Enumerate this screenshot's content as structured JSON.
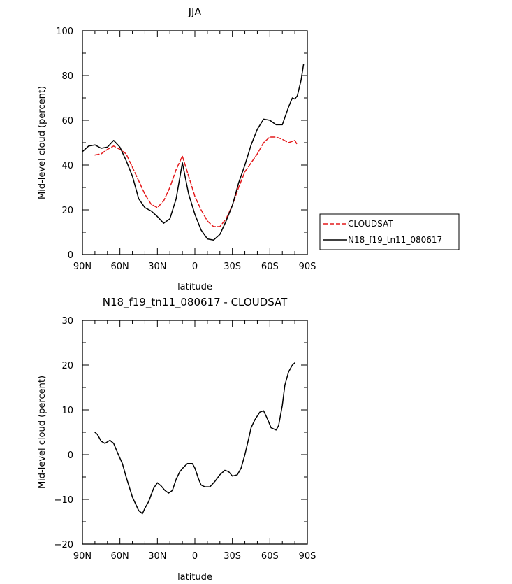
{
  "chart_data": [
    {
      "type": "line",
      "title": "JJA",
      "xlabel": "latitude",
      "ylabel": "Mid-level cloud (percent)",
      "xlim": [
        90,
        -90
      ],
      "ylim": [
        0,
        100
      ],
      "x_ticks": [
        90,
        60,
        30,
        0,
        -30,
        -60,
        -90
      ],
      "x_tick_labels": [
        "90N",
        "60N",
        "30N",
        "0",
        "30S",
        "60S",
        "90S"
      ],
      "y_ticks": [
        0,
        20,
        40,
        60,
        80,
        100
      ],
      "y_tick_labels": [
        "0",
        "20",
        "40",
        "60",
        "80",
        "100"
      ],
      "legend": "right",
      "series": [
        {
          "name": "CLOUDSAT",
          "color": "#e41a1c",
          "style": "dashed",
          "points": [
            [
              80,
              44.5
            ],
            [
              75,
              45
            ],
            [
              70,
              47
            ],
            [
              65,
              48.5
            ],
            [
              60,
              47
            ],
            [
              55,
              45
            ],
            [
              50,
              39
            ],
            [
              45,
              33
            ],
            [
              40,
              27
            ],
            [
              35,
              22.5
            ],
            [
              30,
              21
            ],
            [
              25,
              24
            ],
            [
              20,
              30
            ],
            [
              15,
              38
            ],
            [
              10,
              44
            ],
            [
              5,
              35
            ],
            [
              0,
              26
            ],
            [
              -5,
              20
            ],
            [
              -10,
              15
            ],
            [
              -15,
              12.5
            ],
            [
              -20,
              12.5
            ],
            [
              -25,
              16
            ],
            [
              -30,
              22
            ],
            [
              -35,
              30
            ],
            [
              -40,
              37
            ],
            [
              -45,
              41
            ],
            [
              -50,
              45
            ],
            [
              -55,
              50
            ],
            [
              -60,
              52.5
            ],
            [
              -65,
              52.5
            ],
            [
              -70,
              51.5
            ],
            [
              -75,
              50
            ],
            [
              -80,
              51
            ],
            [
              -82,
              49
            ]
          ]
        },
        {
          "name": "N18_f19_tn11_080617",
          "color": "#000000",
          "style": "solid",
          "points": [
            [
              90,
              46
            ],
            [
              85,
              48.5
            ],
            [
              80,
              49
            ],
            [
              75,
              47.5
            ],
            [
              70,
              48
            ],
            [
              65,
              51
            ],
            [
              60,
              48
            ],
            [
              55,
              42
            ],
            [
              50,
              35
            ],
            [
              45,
              25
            ],
            [
              40,
              21
            ],
            [
              35,
              19.5
            ],
            [
              30,
              17
            ],
            [
              25,
              14
            ],
            [
              20,
              16
            ],
            [
              15,
              25
            ],
            [
              10,
              41
            ],
            [
              5,
              27
            ],
            [
              0,
              18
            ],
            [
              -5,
              11
            ],
            [
              -10,
              7
            ],
            [
              -15,
              6.5
            ],
            [
              -20,
              9
            ],
            [
              -25,
              15
            ],
            [
              -30,
              22
            ],
            [
              -35,
              32
            ],
            [
              -40,
              40
            ],
            [
              -45,
              49
            ],
            [
              -50,
              56
            ],
            [
              -55,
              60.5
            ],
            [
              -60,
              60
            ],
            [
              -65,
              58
            ],
            [
              -70,
              58
            ],
            [
              -75,
              66
            ],
            [
              -78,
              70
            ],
            [
              -80,
              69.5
            ],
            [
              -82,
              71
            ],
            [
              -85,
              78
            ],
            [
              -87,
              85
            ]
          ]
        }
      ]
    },
    {
      "type": "line",
      "title": "N18_f19_tn11_080617 - CLOUDSAT",
      "xlabel": "latitude",
      "ylabel": "Mid-level cloud (percent)",
      "xlim": [
        90,
        -90
      ],
      "ylim": [
        -20,
        30
      ],
      "x_ticks": [
        90,
        60,
        30,
        0,
        -30,
        -60,
        -90
      ],
      "x_tick_labels": [
        "90N",
        "60N",
        "30N",
        "0",
        "30S",
        "60S",
        "90S"
      ],
      "y_ticks": [
        -20,
        -10,
        0,
        10,
        20,
        30
      ],
      "y_tick_labels": [
        "−20",
        "−10",
        "0",
        "10",
        "20",
        "30"
      ],
      "series": [
        {
          "name": "",
          "color": "#000000",
          "style": "solid",
          "points": [
            [
              80,
              5
            ],
            [
              78,
              4.5
            ],
            [
              75,
              3
            ],
            [
              72,
              2.5
            ],
            [
              68,
              3.2
            ],
            [
              65,
              2.5
            ],
            [
              62,
              0.5
            ],
            [
              58,
              -2
            ],
            [
              55,
              -5
            ],
            [
              50,
              -9.5
            ],
            [
              45,
              -12.5
            ],
            [
              42,
              -13.2
            ],
            [
              40,
              -12
            ],
            [
              37,
              -10.5
            ],
            [
              33,
              -7.5
            ],
            [
              30,
              -6.3
            ],
            [
              27,
              -7
            ],
            [
              24,
              -8
            ],
            [
              21,
              -8.6
            ],
            [
              18,
              -8
            ],
            [
              15,
              -5.5
            ],
            [
              12,
              -3.8
            ],
            [
              9,
              -2.8
            ],
            [
              6,
              -2
            ],
            [
              2,
              -2
            ],
            [
              0,
              -3
            ],
            [
              -3,
              -5.5
            ],
            [
              -5,
              -6.8
            ],
            [
              -8,
              -7.2
            ],
            [
              -12,
              -7.2
            ],
            [
              -16,
              -6
            ],
            [
              -20,
              -4.5
            ],
            [
              -24,
              -3.5
            ],
            [
              -27,
              -3.8
            ],
            [
              -30,
              -4.8
            ],
            [
              -34,
              -4.5
            ],
            [
              -37,
              -3
            ],
            [
              -40,
              0
            ],
            [
              -43,
              3.5
            ],
            [
              -45,
              6
            ],
            [
              -48,
              7.8
            ],
            [
              -52,
              9.5
            ],
            [
              -55,
              9.8
            ],
            [
              -58,
              8
            ],
            [
              -61,
              6
            ],
            [
              -65,
              5.5
            ],
            [
              -67,
              6.5
            ],
            [
              -70,
              11
            ],
            [
              -72,
              15.5
            ],
            [
              -75,
              18.5
            ],
            [
              -78,
              20
            ],
            [
              -80,
              20.5
            ]
          ]
        }
      ]
    }
  ]
}
